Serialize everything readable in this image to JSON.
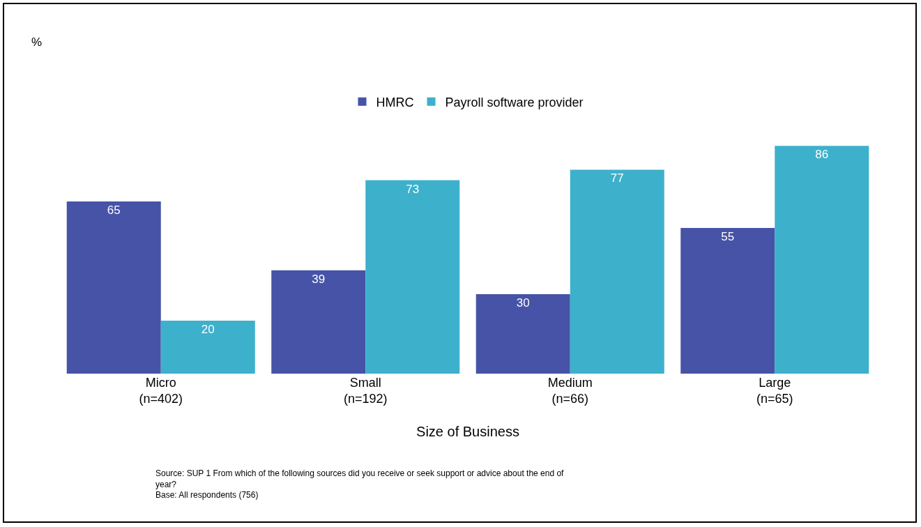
{
  "chart_data": {
    "type": "bar",
    "xlabel": "Size of Business",
    "categories": [
      "Micro\n(n=402)",
      "Small\n(n=192)",
      "Medium\n(n=66)",
      "Large\n(n=65)"
    ],
    "series": [
      {
        "name": "HMRC",
        "color": "#4653a7",
        "values": [
          65,
          39,
          30,
          55
        ]
      },
      {
        "name": "Payroll software provider",
        "color": "#3db0cc",
        "values": [
          20,
          73,
          77,
          86
        ]
      }
    ],
    "data_labels": true,
    "legend": "top",
    "grid": false,
    "annotations": [
      "%",
      "Source: SUP 1 From which of the following sources did you receive or seek support or advice about the end of\nyear?\nBase: All respondents (756)"
    ]
  }
}
